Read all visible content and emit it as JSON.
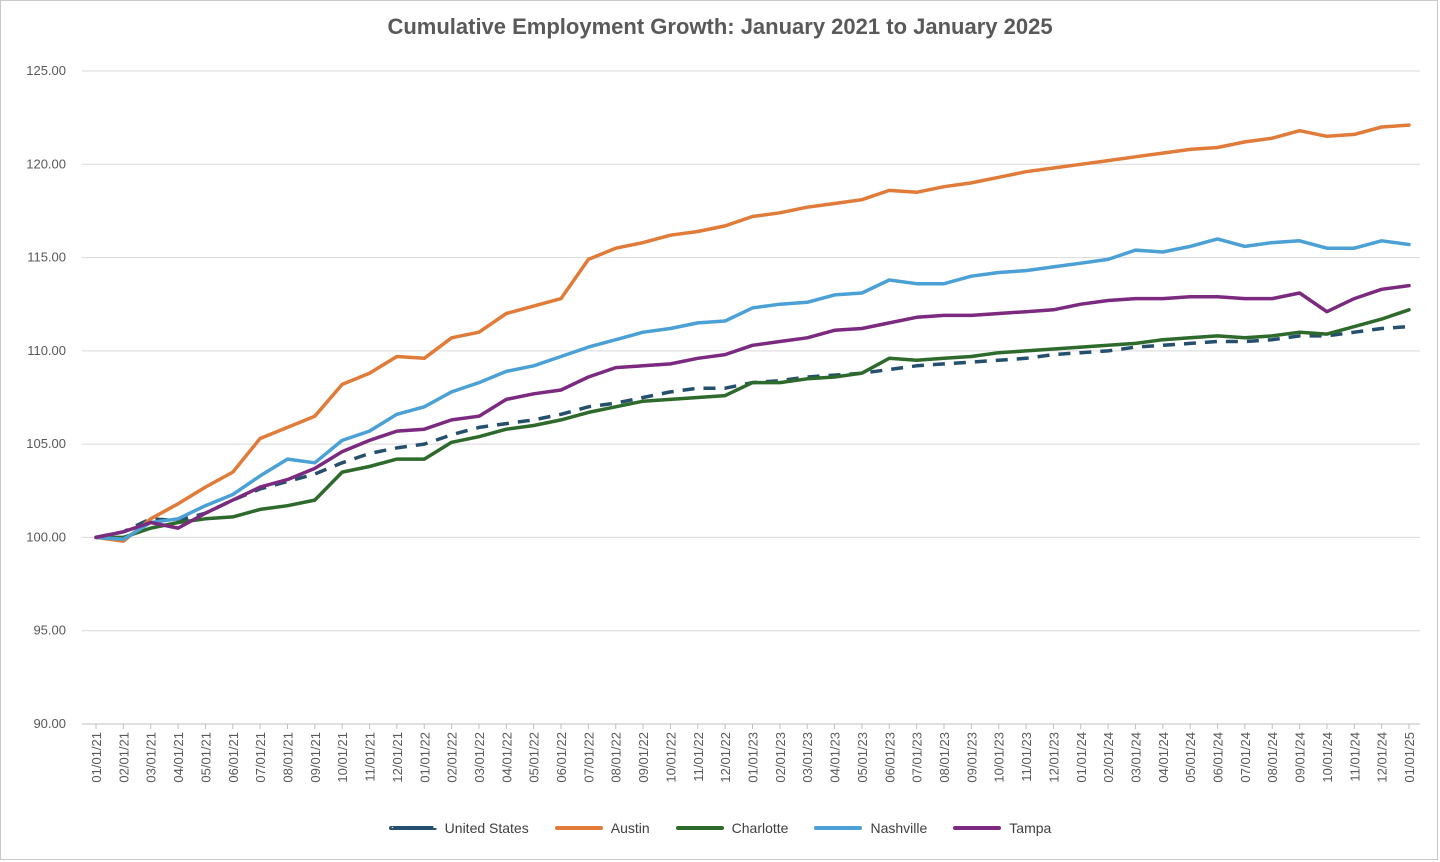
{
  "chart_data": {
    "type": "line",
    "title": "Cumulative Employment Growth: January 2021 to January 2025",
    "xlabel": "",
    "ylabel": "",
    "ylim": [
      90,
      125
    ],
    "yticks": [
      "90.00",
      "95.00",
      "100.00",
      "105.00",
      "110.00",
      "115.00",
      "120.00",
      "125.00"
    ],
    "grid": "horizontal",
    "legend_position": "bottom",
    "categories": [
      "01/01/21",
      "02/01/21",
      "03/01/21",
      "04/01/21",
      "05/01/21",
      "06/01/21",
      "07/01/21",
      "08/01/21",
      "09/01/21",
      "10/01/21",
      "11/01/21",
      "12/01/21",
      "01/01/22",
      "02/01/22",
      "03/01/22",
      "04/01/22",
      "05/01/22",
      "06/01/22",
      "07/01/22",
      "08/01/22",
      "09/01/22",
      "10/01/22",
      "11/01/22",
      "12/01/22",
      "01/01/23",
      "02/01/23",
      "03/01/23",
      "04/01/23",
      "05/01/23",
      "06/01/23",
      "07/01/23",
      "08/01/23",
      "09/01/23",
      "10/01/23",
      "11/01/23",
      "12/01/23",
      "01/01/24",
      "02/01/24",
      "03/01/24",
      "04/01/24",
      "05/01/24",
      "06/01/24",
      "07/01/24",
      "08/01/24",
      "09/01/24",
      "10/01/24",
      "11/01/24",
      "12/01/24",
      "01/01/25"
    ],
    "series": [
      {
        "name": "United States",
        "color": "#24506e",
        "dashed": true,
        "values": [
          100.0,
          100.3,
          101.0,
          100.9,
          101.3,
          102.0,
          102.6,
          103.0,
          103.4,
          104.0,
          104.5,
          104.8,
          105.0,
          105.5,
          105.9,
          106.1,
          106.3,
          106.6,
          107.0,
          107.2,
          107.5,
          107.8,
          108.0,
          108.0,
          108.3,
          108.4,
          108.6,
          108.7,
          108.8,
          109.0,
          109.2,
          109.3,
          109.4,
          109.5,
          109.6,
          109.8,
          109.9,
          110.0,
          110.2,
          110.3,
          110.4,
          110.5,
          110.5,
          110.6,
          110.8,
          110.8,
          111.0,
          111.2,
          111.3
        ]
      },
      {
        "name": "Austin",
        "color": "#e07b39",
        "dashed": false,
        "values": [
          100.0,
          99.8,
          101.0,
          101.8,
          102.7,
          103.5,
          105.3,
          105.9,
          106.5,
          108.2,
          108.8,
          109.7,
          109.6,
          110.7,
          111.0,
          112.0,
          112.4,
          112.8,
          114.9,
          115.5,
          115.8,
          116.2,
          116.4,
          116.7,
          117.2,
          117.4,
          117.7,
          117.9,
          118.1,
          118.6,
          118.5,
          118.8,
          119.0,
          119.3,
          119.6,
          119.8,
          120.0,
          120.2,
          120.4,
          120.6,
          120.8,
          120.9,
          121.2,
          121.4,
          121.8,
          121.5,
          121.6,
          122.0,
          122.1
        ]
      },
      {
        "name": "Charlotte",
        "color": "#2d6a2b",
        "dashed": false,
        "values": [
          100.0,
          100.0,
          100.5,
          100.8,
          101.0,
          101.1,
          101.5,
          101.7,
          102.0,
          103.5,
          103.8,
          104.2,
          104.2,
          105.1,
          105.4,
          105.8,
          106.0,
          106.3,
          106.7,
          107.0,
          107.3,
          107.4,
          107.5,
          107.6,
          108.3,
          108.3,
          108.5,
          108.6,
          108.8,
          109.6,
          109.5,
          109.6,
          109.7,
          109.9,
          110.0,
          110.1,
          110.2,
          110.3,
          110.4,
          110.6,
          110.7,
          110.8,
          110.7,
          110.8,
          111.0,
          110.9,
          111.3,
          111.7,
          112.2
        ]
      },
      {
        "name": "Nashville",
        "color": "#4ba0d6",
        "dashed": false,
        "values": [
          100.0,
          99.9,
          100.8,
          101.0,
          101.7,
          102.3,
          103.3,
          104.2,
          104.0,
          105.2,
          105.7,
          106.6,
          107.0,
          107.8,
          108.3,
          108.9,
          109.2,
          109.7,
          110.2,
          110.6,
          111.0,
          111.2,
          111.5,
          111.6,
          112.3,
          112.5,
          112.6,
          113.0,
          113.1,
          113.8,
          113.6,
          113.6,
          114.0,
          114.2,
          114.3,
          114.5,
          114.7,
          114.9,
          115.4,
          115.3,
          115.6,
          116.0,
          115.6,
          115.8,
          115.9,
          115.5,
          115.5,
          115.9,
          115.7
        ]
      },
      {
        "name": "Tampa",
        "color": "#7b2a80",
        "dashed": false,
        "values": [
          100.0,
          100.3,
          100.8,
          100.5,
          101.3,
          102.0,
          102.7,
          103.1,
          103.7,
          104.6,
          105.2,
          105.7,
          105.8,
          106.3,
          106.5,
          107.4,
          107.7,
          107.9,
          108.6,
          109.1,
          109.2,
          109.3,
          109.6,
          109.8,
          110.3,
          110.5,
          110.7,
          111.1,
          111.2,
          111.5,
          111.8,
          111.9,
          111.9,
          112.0,
          112.1,
          112.2,
          112.5,
          112.7,
          112.8,
          112.8,
          112.9,
          112.9,
          112.8,
          112.8,
          113.1,
          112.1,
          112.8,
          113.3,
          113.5
        ]
      }
    ]
  }
}
